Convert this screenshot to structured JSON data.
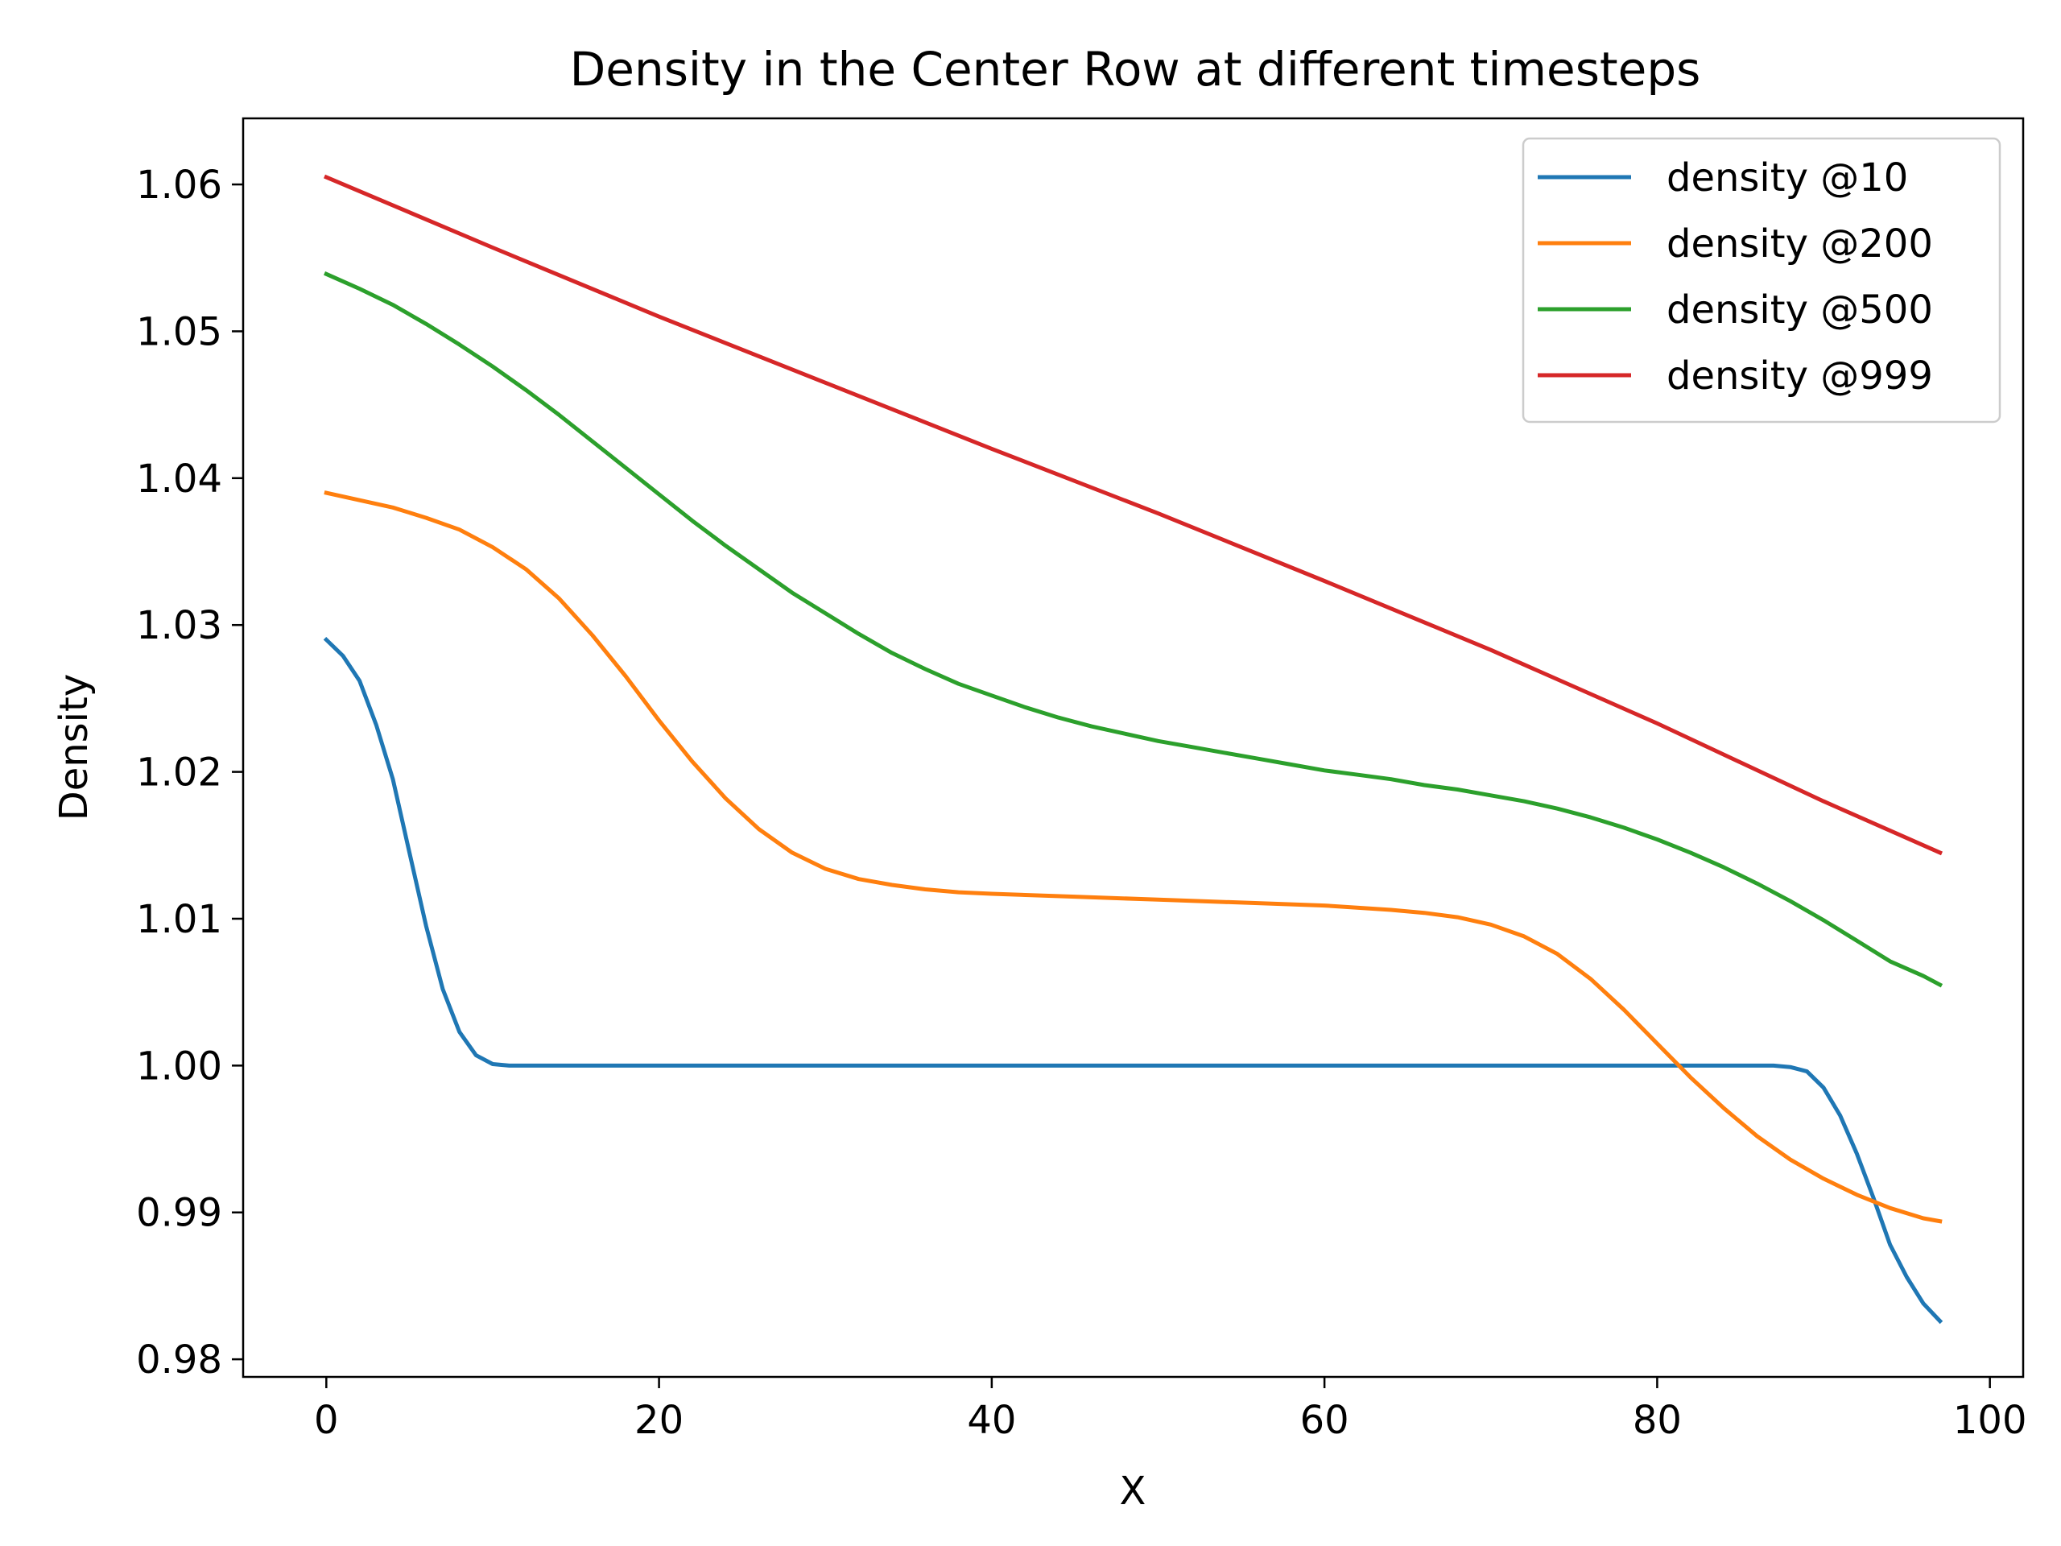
{
  "chart_data": {
    "type": "line",
    "title": "Density in the Center Row at different timesteps",
    "xlabel": "X",
    "ylabel": "Density",
    "xlim": [
      -5,
      102
    ],
    "ylim": [
      0.9788,
      1.0645
    ],
    "xticks": [
      0,
      20,
      40,
      60,
      80,
      100
    ],
    "yticks": [
      0.98,
      0.99,
      1.0,
      1.01,
      1.02,
      1.03,
      1.04,
      1.05,
      1.06
    ],
    "xtick_labels": [
      "0",
      "20",
      "40",
      "60",
      "80",
      "100"
    ],
    "ytick_labels": [
      "0.98",
      "0.99",
      "1.00",
      "1.01",
      "1.02",
      "1.03",
      "1.04",
      "1.05",
      "1.06"
    ],
    "grid": false,
    "legend_position": "top-right",
    "series": [
      {
        "name": "density @10",
        "color": "#1f77b4",
        "x": [
          0,
          1,
          2,
          3,
          4,
          5,
          6,
          7,
          8,
          9,
          10,
          11,
          12,
          20,
          40,
          60,
          80,
          86,
          87,
          88,
          89,
          90,
          91,
          92,
          93,
          94,
          95,
          96,
          97
        ],
        "y": [
          1.029,
          1.0279,
          1.0262,
          1.0232,
          1.0195,
          1.0145,
          1.0095,
          1.0052,
          1.0023,
          1.0007,
          1.0001,
          1.0,
          1.0,
          1.0,
          1.0,
          1.0,
          1.0,
          1.0,
          1.0,
          0.9999,
          0.9996,
          0.9985,
          0.9966,
          0.994,
          0.991,
          0.9878,
          0.9856,
          0.9838,
          0.9826
        ]
      },
      {
        "name": "density @200",
        "color": "#ff7f0e",
        "x": [
          0,
          2,
          4,
          6,
          8,
          10,
          12,
          14,
          16,
          18,
          20,
          22,
          24,
          26,
          28,
          30,
          32,
          34,
          36,
          38,
          40,
          45,
          50,
          55,
          60,
          64,
          66,
          68,
          70,
          72,
          74,
          76,
          78,
          80,
          82,
          84,
          86,
          88,
          90,
          92,
          94,
          96,
          97
        ],
        "y": [
          1.039,
          1.0385,
          1.038,
          1.0373,
          1.0365,
          1.0353,
          1.0338,
          1.0318,
          1.0293,
          1.0265,
          1.0235,
          1.0207,
          1.0182,
          1.0161,
          1.0145,
          1.0134,
          1.0127,
          1.0123,
          1.012,
          1.0118,
          1.0117,
          1.0115,
          1.0113,
          1.0111,
          1.0109,
          1.0106,
          1.0104,
          1.0101,
          1.0096,
          1.0088,
          1.0076,
          1.0059,
          1.0038,
          1.0015,
          0.9992,
          0.9971,
          0.9952,
          0.9936,
          0.9923,
          0.9912,
          0.9903,
          0.9896,
          0.9894
        ]
      },
      {
        "name": "density @500",
        "color": "#2ca02c",
        "x": [
          0,
          2,
          4,
          6,
          8,
          10,
          12,
          14,
          16,
          18,
          20,
          22,
          24,
          26,
          28,
          30,
          32,
          34,
          36,
          38,
          40,
          42,
          44,
          46,
          48,
          50,
          52,
          54,
          56,
          58,
          60,
          62,
          64,
          66,
          68,
          70,
          72,
          74,
          76,
          78,
          80,
          82,
          84,
          86,
          88,
          90,
          92,
          94,
          96,
          97
        ],
        "y": [
          1.0539,
          1.0529,
          1.0518,
          1.0505,
          1.0491,
          1.0476,
          1.046,
          1.0443,
          1.0425,
          1.0407,
          1.0389,
          1.0371,
          1.0354,
          1.0338,
          1.0322,
          1.0308,
          1.0294,
          1.0281,
          1.027,
          1.026,
          1.0252,
          1.0244,
          1.0237,
          1.0231,
          1.0226,
          1.0221,
          1.0217,
          1.0213,
          1.0209,
          1.0205,
          1.0201,
          1.0198,
          1.0195,
          1.0191,
          1.0188,
          1.0184,
          1.018,
          1.0175,
          1.0169,
          1.0162,
          1.0154,
          1.0145,
          1.0135,
          1.0124,
          1.0112,
          1.0099,
          1.0085,
          1.0071,
          1.0061,
          1.0055
        ]
      },
      {
        "name": "density @999",
        "color": "#d62728",
        "x": [
          0,
          10,
          20,
          30,
          40,
          50,
          60,
          70,
          80,
          90,
          97
        ],
        "y": [
          1.0605,
          1.0557,
          1.051,
          1.0465,
          1.042,
          1.0376,
          1.033,
          1.0283,
          1.0233,
          1.018,
          1.0145
        ]
      }
    ]
  }
}
